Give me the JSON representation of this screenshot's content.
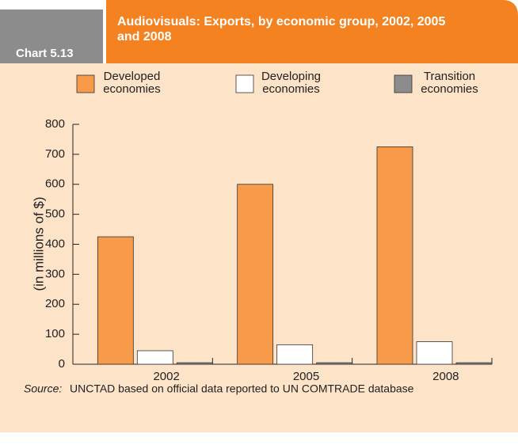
{
  "chart_data": {
    "type": "bar",
    "label": "Chart 5.13",
    "title": "Audiovisuals: Exports, by economic group, 2002, 2005 and 2008",
    "y_label": "(in millions of $)",
    "categories": [
      "2002",
      "2005",
      "2008"
    ],
    "series": [
      {
        "name": "Developed economies",
        "color": "#f79a4a",
        "values": [
          425,
          600,
          725
        ]
      },
      {
        "name": "Developing economies",
        "color": "#ffffff",
        "values": [
          45,
          65,
          75
        ]
      },
      {
        "name": "Transition economies",
        "color": "#8c8c8c",
        "values": [
          5,
          5,
          5
        ]
      }
    ],
    "ylim": [
      0,
      800
    ],
    "yticks": [
      0,
      100,
      200,
      300,
      400,
      500,
      600,
      700,
      800
    ],
    "source_label": "Source:",
    "source": "UNCTAD based on official data reported to UN COMTRADE database"
  }
}
